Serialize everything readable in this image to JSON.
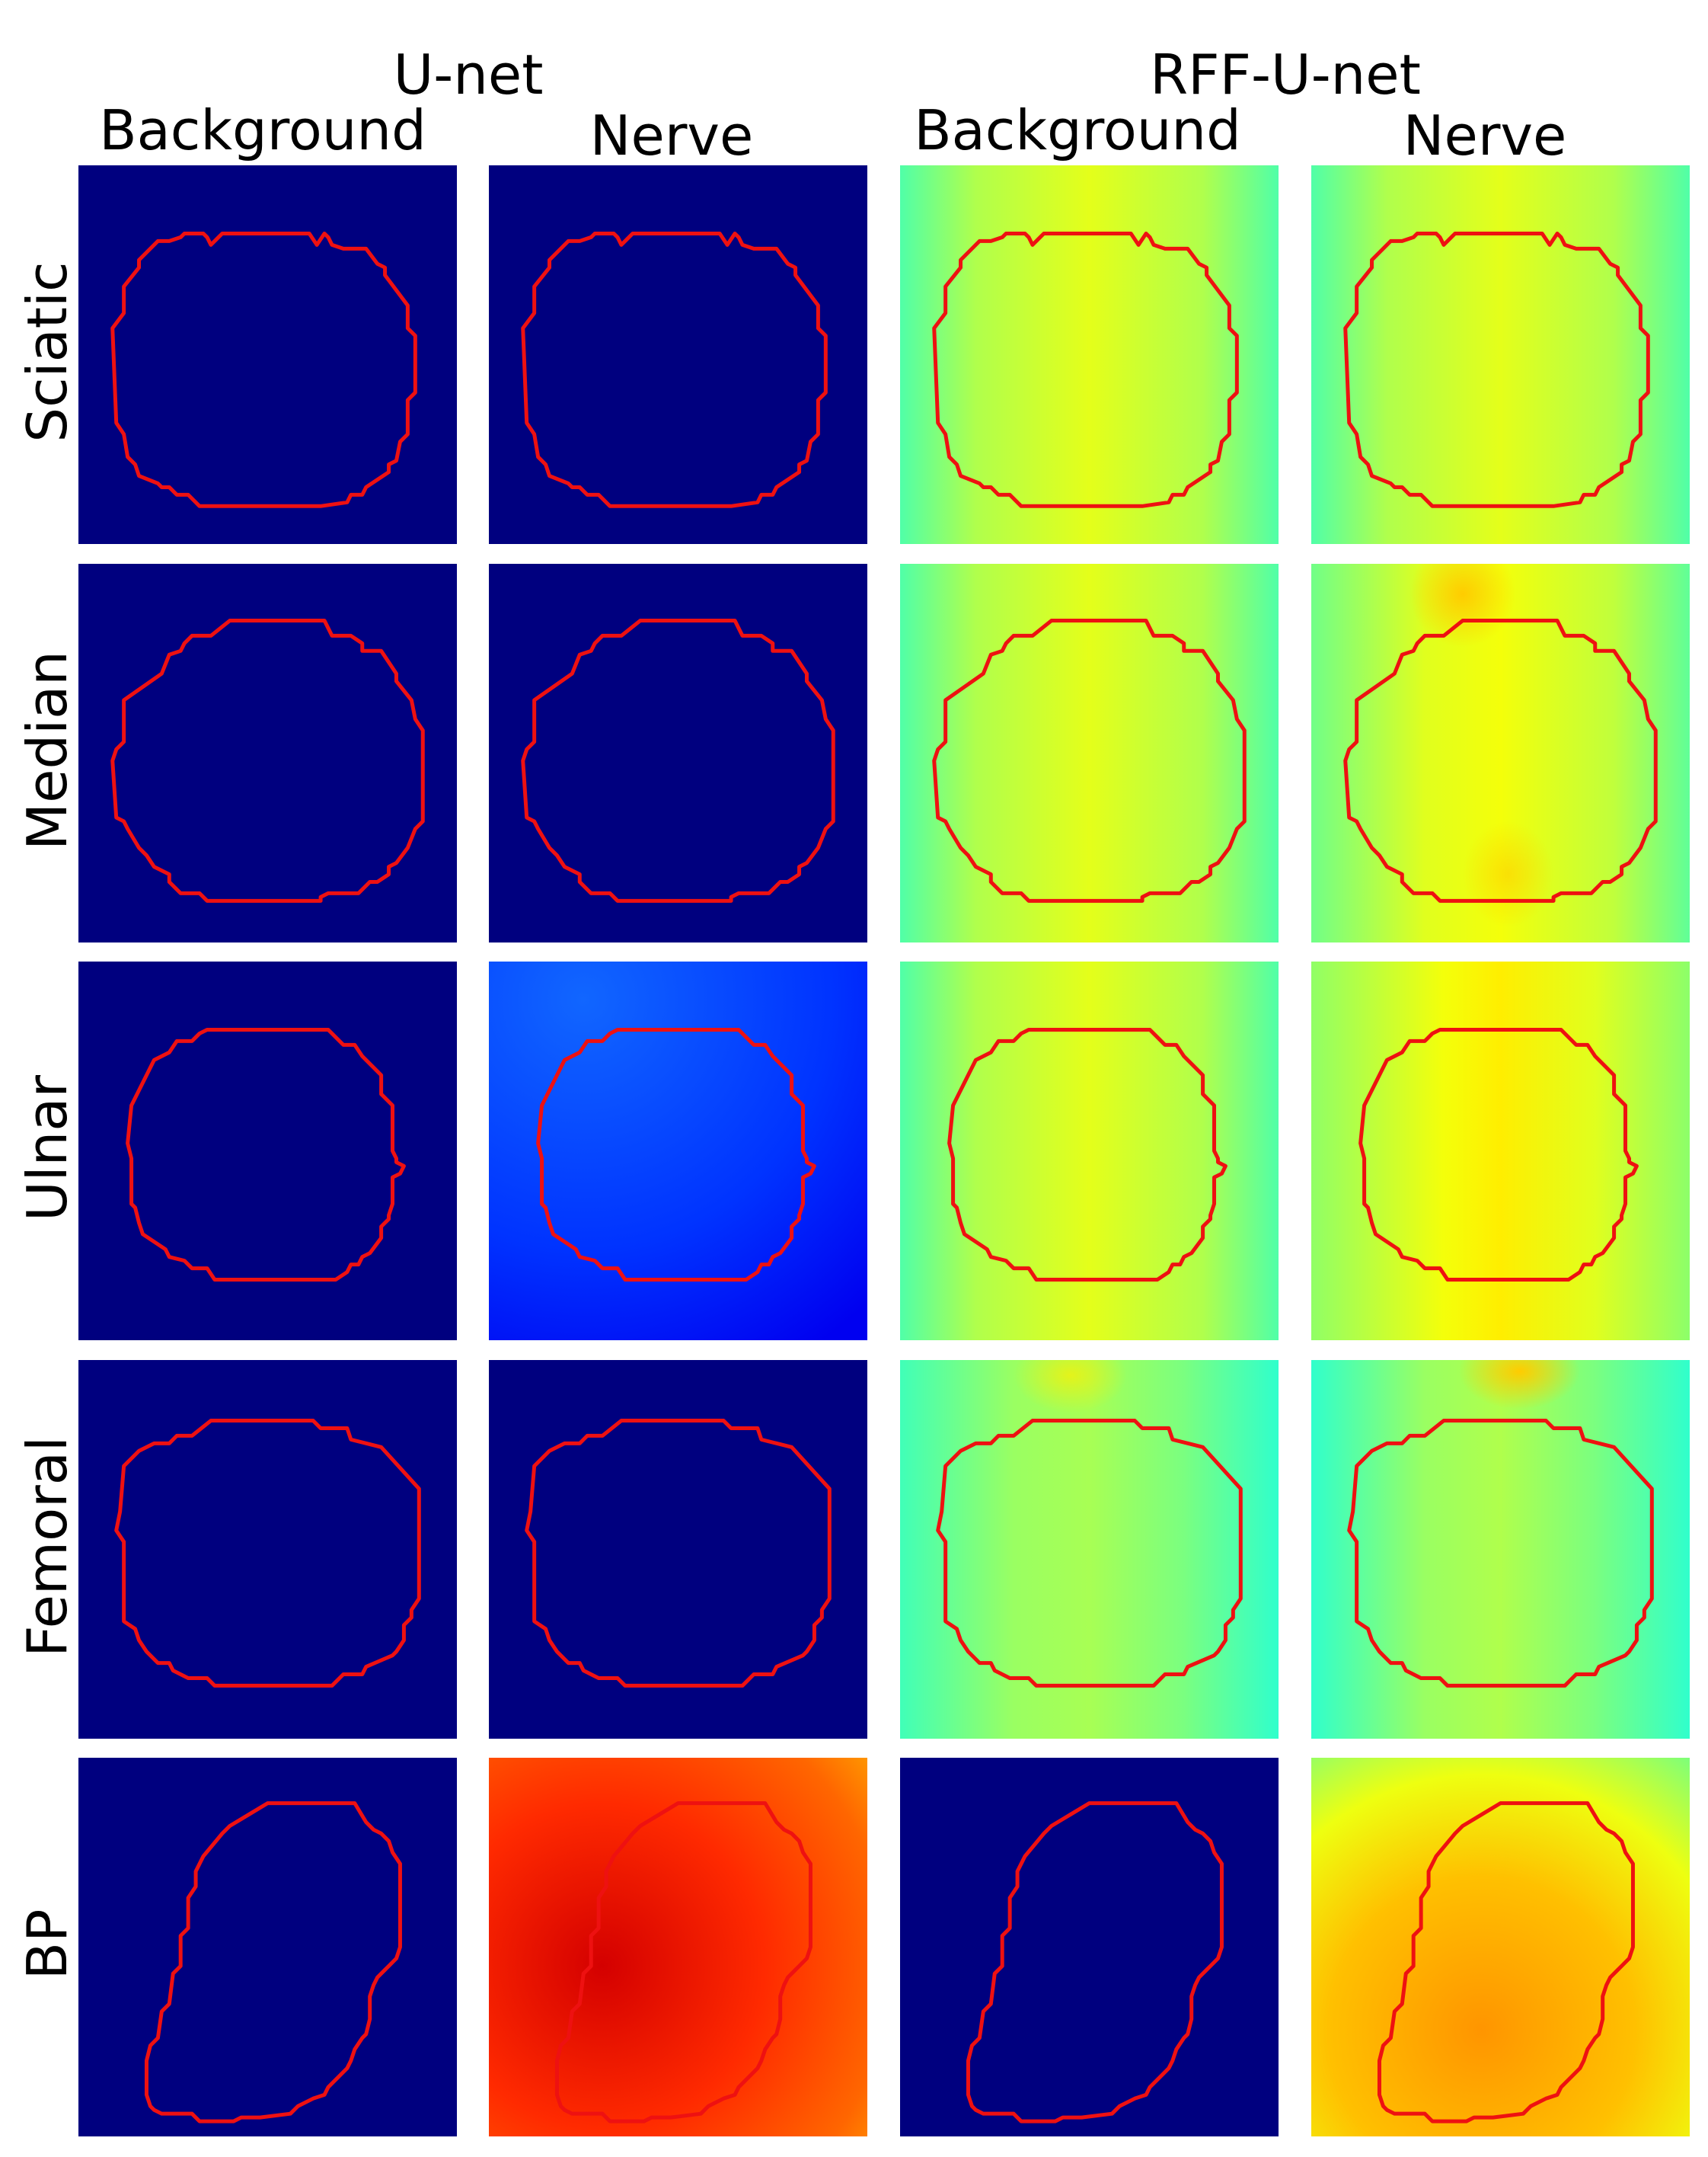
{
  "models": [
    {
      "title": "U-net"
    },
    {
      "title": "RFF-U-net"
    }
  ],
  "columns": [
    {
      "label": "Background"
    },
    {
      "label": "Nerve"
    },
    {
      "label": "Background"
    },
    {
      "label": "Nerve"
    }
  ],
  "rows": [
    {
      "label": "Sciatic"
    },
    {
      "label": "Median"
    },
    {
      "label": "Ulnar"
    },
    {
      "label": "Femoral"
    },
    {
      "label": "BP"
    }
  ],
  "colors": {
    "dark_navy": "#00007f",
    "outline_red": "#ee1111"
  },
  "maps": [
    [
      "navy",
      "navy",
      "jet-yellowgreen",
      "jet-yellowgreen"
    ],
    [
      "navy",
      "navy",
      "jet-yellowgreen",
      "jet-yellow-spots"
    ],
    [
      "navy",
      "blue",
      "jet-yellowgreen",
      "jet-yellow"
    ],
    [
      "navy",
      "navy",
      "jet-green",
      "jet-green-top-spot"
    ],
    [
      "navy",
      "red-orange",
      "navy",
      "orange-yellow"
    ]
  ]
}
